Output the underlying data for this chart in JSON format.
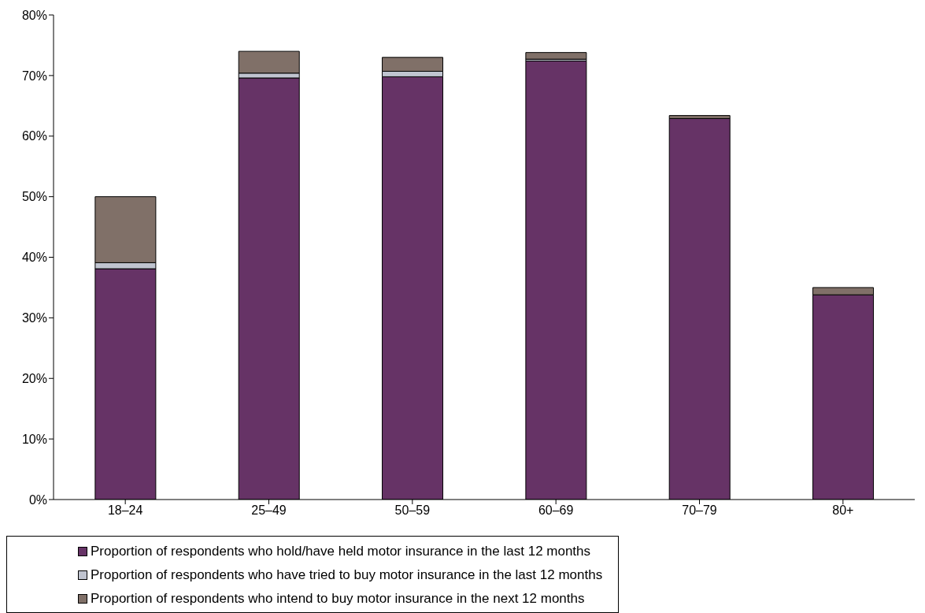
{
  "chart_data": {
    "type": "bar",
    "stacked": true,
    "categories": [
      "18–24",
      "25–49",
      "50–59",
      "60–69",
      "70–79",
      "80+"
    ],
    "series": [
      {
        "name": "Proportion of respondents who hold/have held motor insurance in the last 12 months",
        "color": "#663366",
        "values": [
          38.1,
          69.6,
          69.8,
          72.4,
          62.9,
          33.8
        ]
      },
      {
        "name": "Proportion of respondents who have tried to buy motor insurance in the last 12 months",
        "color": "#c0c4d0",
        "values": [
          1.0,
          0.8,
          0.9,
          0.3,
          null,
          null
        ]
      },
      {
        "name": "Proportion of respondents who intend to buy motor insurance in the next 12 months",
        "color": "#807068",
        "values": [
          10.9,
          3.6,
          2.3,
          1.1,
          0.5,
          1.2
        ]
      }
    ],
    "ylim": [
      0,
      80
    ],
    "yticks": [
      {
        "value": 0,
        "label": "0%"
      },
      {
        "value": 10,
        "label": "10%"
      },
      {
        "value": 20,
        "label": "20%"
      },
      {
        "value": 30,
        "label": "30%"
      },
      {
        "value": 40,
        "label": "40%"
      },
      {
        "value": 50,
        "label": "50%"
      },
      {
        "value": 60,
        "label": "60%"
      },
      {
        "value": 70,
        "label": "70%"
      },
      {
        "value": 80,
        "label": "80%"
      }
    ],
    "grid": false,
    "legend": "bottom"
  }
}
